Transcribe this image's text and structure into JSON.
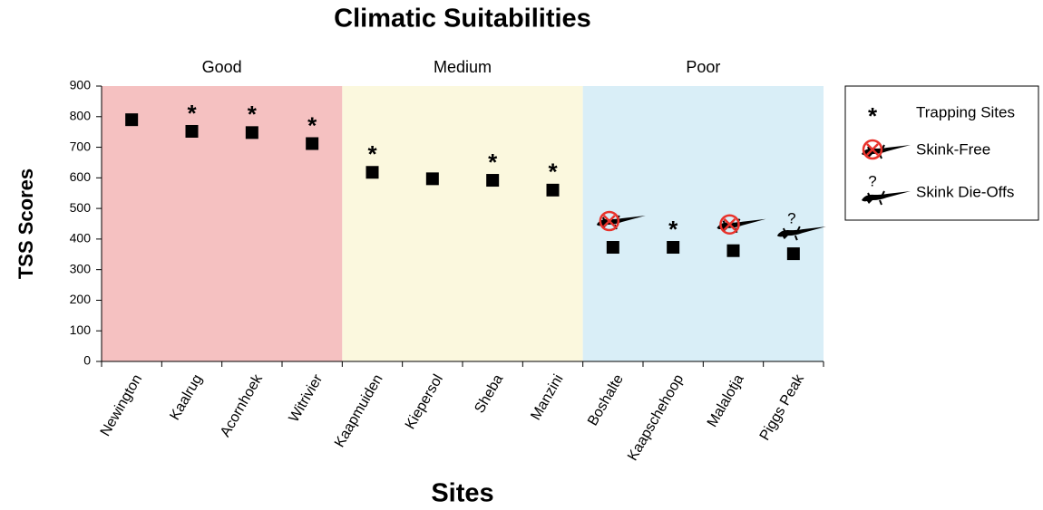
{
  "chart_data": {
    "type": "scatter",
    "title": "Climatic Suitabilities",
    "x_label": "Sites",
    "y_label": "TSS Scores",
    "categories": [
      "Newington",
      "Kaalrug",
      "Acornhoek",
      "Witrivier",
      "Kaapmuiden",
      "Kiepersol",
      "Sheba",
      "Manzini",
      "Boshalte",
      "Kaapschehoop",
      "Malalotja",
      "Piggs Peak"
    ],
    "values": [
      790,
      752,
      748,
      712,
      618,
      597,
      592,
      560,
      373,
      373,
      362,
      352
    ],
    "color": "#000000",
    "ylim": [
      0,
      900
    ],
    "yticks": [
      0,
      100,
      200,
      300,
      400,
      500,
      600,
      700,
      800,
      900
    ],
    "regions": [
      {
        "label": "Good",
        "from": "Newington",
        "to": "Witrivier",
        "color": "#f5c1c1"
      },
      {
        "label": "Medium",
        "from": "Kaapmuiden",
        "to": "Manzini",
        "color": "#fbf8de"
      },
      {
        "label": "Poor",
        "from": "Boshalte",
        "to": "Piggs Peak",
        "color": "#d9eef7"
      }
    ],
    "legend": [
      {
        "label": "Trapping Sites",
        "symbol": "*",
        "sites": [
          "Kaalrug",
          "Acornhoek",
          "Witrivier",
          "Kaapmuiden",
          "Sheba",
          "Manzini",
          "Kaapschehoop"
        ]
      },
      {
        "label": "Skink-Free",
        "sites": [
          "Boshalte",
          "Malalotja"
        ]
      },
      {
        "label": "Skink Die-Offs",
        "symbol": "?",
        "sites": [
          "Piggs Peak"
        ]
      }
    ],
    "legend_position": "right"
  }
}
